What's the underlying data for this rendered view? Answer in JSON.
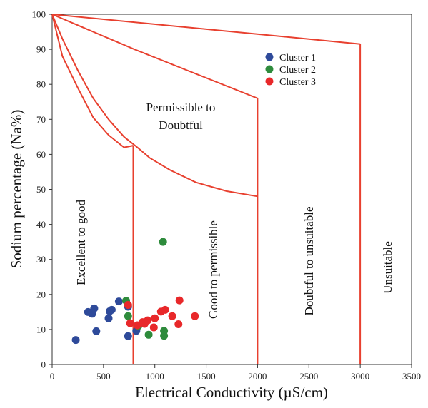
{
  "chart_data": {
    "type": "scatter",
    "xlabel": "Electrical Conductivity (µS/cm)",
    "ylabel": "Sodium percentage (Na%)",
    "xlim": [
      0,
      3500
    ],
    "ylim": [
      0,
      100
    ],
    "xticks": [
      "0",
      "500",
      "1000",
      "1500",
      "2000",
      "2500",
      "3000",
      "3500"
    ],
    "yticks": [
      "0",
      "10",
      "20",
      "30",
      "40",
      "50",
      "60",
      "70",
      "80",
      "90",
      "100"
    ],
    "grid": false,
    "legend_position": "top-right",
    "regions": [
      "Excellent to good",
      "Good to permissible",
      "Permissible to",
      "Doubtful",
      "Doubtful to unsuitable",
      "Unsuitable"
    ],
    "boundary_color": "#e8402f",
    "boundaries": [
      {
        "id": "excellent-upper",
        "points": [
          [
            0,
            100
          ],
          [
            100,
            88
          ],
          [
            250,
            79
          ],
          [
            400,
            70.5
          ],
          [
            550,
            65.5
          ],
          [
            700,
            62
          ],
          [
            790,
            62.5
          ]
        ]
      },
      {
        "id": "ec-750",
        "points": [
          [
            790,
            62.5
          ],
          [
            790,
            0
          ]
        ]
      },
      {
        "id": "good-upper",
        "points": [
          [
            0,
            100
          ],
          [
            100,
            93
          ],
          [
            250,
            84
          ],
          [
            400,
            76
          ],
          [
            550,
            70
          ],
          [
            700,
            65
          ],
          [
            830,
            62
          ],
          [
            950,
            59
          ],
          [
            1150,
            55.5
          ],
          [
            1400,
            52
          ],
          [
            1700,
            49.5
          ],
          [
            2000,
            48
          ]
        ]
      },
      {
        "id": "ec-2000",
        "points": [
          [
            2000,
            76
          ],
          [
            2000,
            0
          ]
        ]
      },
      {
        "id": "permissible-upper",
        "points": [
          [
            0,
            100
          ],
          [
            800,
            90
          ],
          [
            2000,
            76
          ]
        ]
      },
      {
        "id": "doubtful-upper",
        "points": [
          [
            0,
            100
          ],
          [
            3000,
            91.5
          ]
        ]
      },
      {
        "id": "ec-3000",
        "points": [
          [
            3000,
            91.5
          ],
          [
            3000,
            0
          ]
        ]
      }
    ],
    "series": [
      {
        "name": "Cluster 1",
        "color": "#2e4a9a",
        "points": [
          [
            230,
            7
          ],
          [
            350,
            15
          ],
          [
            390,
            14.5
          ],
          [
            410,
            16
          ],
          [
            430,
            9.5
          ],
          [
            550,
            13.2
          ],
          [
            560,
            15.2
          ],
          [
            580,
            15.6
          ],
          [
            650,
            18
          ],
          [
            740,
            8.1
          ],
          [
            820,
            9.6
          ],
          [
            740,
            16.5
          ]
        ]
      },
      {
        "name": "Cluster 2",
        "color": "#2e8b3c",
        "points": [
          [
            720,
            18.2
          ],
          [
            740,
            13.8
          ],
          [
            840,
            11
          ],
          [
            940,
            8.5
          ],
          [
            1090,
            9.6
          ],
          [
            1090,
            8.2
          ],
          [
            1080,
            35
          ]
        ]
      },
      {
        "name": "Cluster 3",
        "color": "#e8282a",
        "points": [
          [
            740,
            17
          ],
          [
            760,
            11.8
          ],
          [
            830,
            11.2
          ],
          [
            880,
            12.1
          ],
          [
            900,
            11.6
          ],
          [
            930,
            12.6
          ],
          [
            990,
            10.6
          ],
          [
            1000,
            13.2
          ],
          [
            1060,
            15.1
          ],
          [
            1100,
            15.6
          ],
          [
            1170,
            13.8
          ],
          [
            1240,
            18.3
          ],
          [
            1230,
            11.5
          ],
          [
            1390,
            13.8
          ]
        ]
      }
    ]
  }
}
